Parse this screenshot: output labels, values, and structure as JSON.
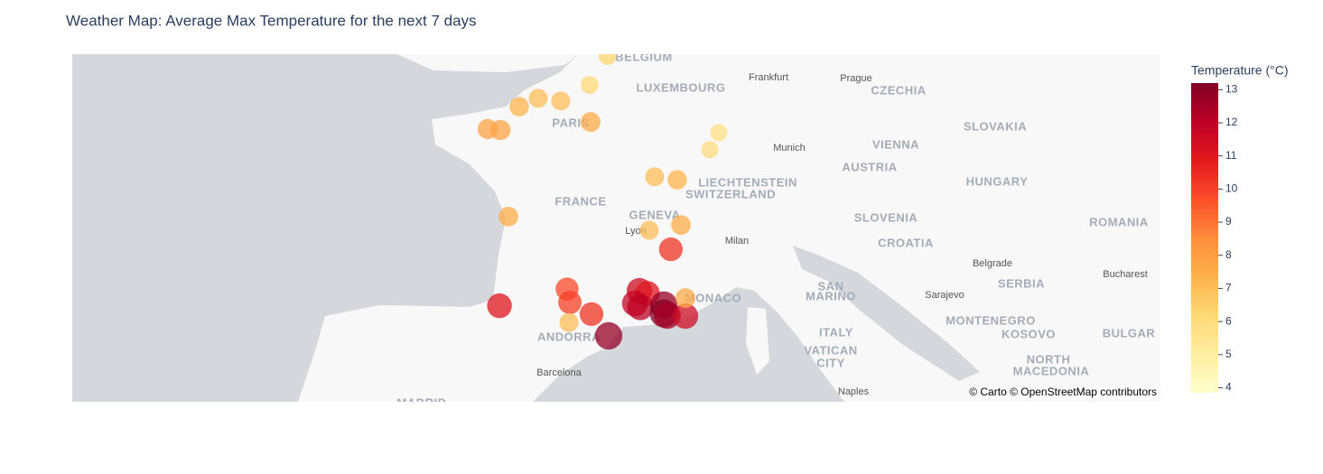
{
  "chart_data": {
    "type": "scatter_map",
    "title": "Weather Map: Average Max Temperature for the next 7 days",
    "colorbar_title": "Temperature (°C)",
    "colorscale": "YlOrRd",
    "clim": [
      3.85,
      13.2
    ],
    "cticks": [
      4,
      5,
      6,
      7,
      8,
      9,
      10,
      11,
      12,
      13
    ],
    "lon": [
      3.04,
      2.27,
      0.08,
      1.04,
      -0.73,
      -2.07,
      -1.53,
      2.31,
      7.77,
      7.39,
      5.04,
      6.0,
      -1.19,
      4.81,
      6.16,
      5.73,
      1.31,
      1.43,
      1.39,
      2.35,
      -1.57,
      3.08,
      4.39,
      4.73,
      4.2,
      4.43,
      5.43,
      5.43,
      5.58,
      6.35,
      6.35
    ],
    "lat": [
      50.89,
      50.02,
      49.62,
      49.54,
      49.37,
      48.7,
      48.67,
      48.91,
      48.59,
      48.08,
      47.27,
      47.18,
      46.08,
      45.67,
      45.83,
      45.1,
      43.91,
      43.51,
      42.91,
      43.16,
      43.41,
      42.51,
      43.86,
      43.78,
      43.48,
      43.37,
      43.43,
      43.18,
      43.12,
      43.1,
      43.64
    ],
    "values": [
      6.3,
      6.2,
      7.0,
      7.0,
      7.3,
      7.8,
      7.8,
      7.6,
      5.8,
      5.9,
      7.0,
      7.3,
      7.5,
      7.0,
      7.5,
      10.3,
      9.8,
      10.0,
      7.0,
      10.3,
      11.0,
      12.8,
      11.5,
      11.0,
      11.8,
      12.0,
      12.8,
      13.2,
      12.5,
      11.5,
      7.6
    ],
    "map_labels": [
      "BELGIUM",
      "LUXEMBOURG",
      "Frankfurt",
      "Prague",
      "CZECHIA",
      "PARIS",
      "Munich",
      "VIENNA",
      "SLOVAKIA",
      "FRANCE",
      "LIECHTENSTEIN",
      "SWITZERLAND",
      "AUSTRIA",
      "HUNGARY",
      "GENEVA",
      "Lyon",
      "SLOVENIA",
      "ROMANIA",
      "Milan",
      "CROATIA",
      "Belgrade",
      "Bucharest",
      "SAN",
      "MARINO",
      "MONACO",
      "Sarajevo",
      "SERBIA",
      "MONTENEGRO",
      "KOSOVO",
      "BULGAR",
      "ANDORRA",
      "ITALY",
      "VATICAN",
      "CITY",
      "NORTH",
      "MACEDONIA",
      "Barcelona",
      "Naples",
      "MADRID"
    ],
    "attribution": "© Carto © OpenStreetMap contributors"
  }
}
